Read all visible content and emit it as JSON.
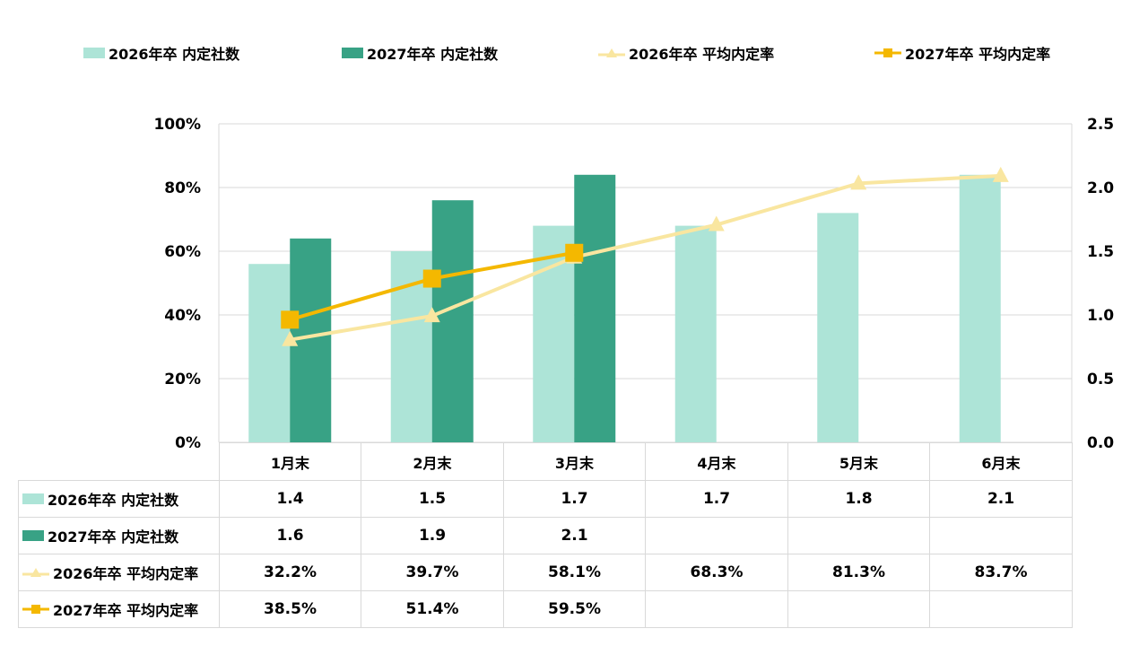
{
  "chart_data": {
    "type": "bar",
    "categories": [
      "1月末",
      "2月末",
      "3月末",
      "4月末",
      "5月末",
      "6月末"
    ],
    "series": [
      {
        "name": "2026年卒 内定社数",
        "kind": "bar",
        "axis": "right",
        "color": "#ade4d7",
        "values": [
          1.4,
          1.5,
          1.7,
          1.7,
          1.8,
          2.1
        ],
        "labels": [
          "1.4",
          "1.5",
          "1.7",
          "1.7",
          "1.8",
          "2.1"
        ]
      },
      {
        "name": "2027年卒 内定社数",
        "kind": "bar",
        "axis": "right",
        "color": "#38a285",
        "values": [
          1.6,
          1.9,
          2.1,
          null,
          null,
          null
        ],
        "labels": [
          "1.6",
          "1.9",
          "2.1",
          "",
          "",
          ""
        ]
      },
      {
        "name": "2026年卒 平均内定率",
        "kind": "line",
        "marker": "triangle",
        "axis": "left",
        "color": "#f9e6a0",
        "values": [
          32.2,
          39.7,
          58.1,
          68.3,
          81.3,
          83.7
        ],
        "labels": [
          "32.2%",
          "39.7%",
          "58.1%",
          "68.3%",
          "81.3%",
          "83.7%"
        ]
      },
      {
        "name": "2027年卒 平均内定率",
        "kind": "line",
        "marker": "square",
        "axis": "left",
        "color": "#f4b800",
        "values": [
          38.5,
          51.4,
          59.5,
          null,
          null,
          null
        ],
        "labels": [
          "38.5%",
          "51.4%",
          "59.5%",
          "",
          "",
          ""
        ]
      }
    ],
    "y_left": {
      "min": 0,
      "max": 100,
      "ticks": [
        "0%",
        "20%",
        "40%",
        "60%",
        "80%",
        "100%"
      ]
    },
    "y_right": {
      "min": 0,
      "max": 2.5,
      "ticks": [
        "0.0",
        "0.5",
        "1.0",
        "1.5",
        "2.0",
        "2.5"
      ]
    },
    "grid": true,
    "legend": "top",
    "data_table": true
  }
}
